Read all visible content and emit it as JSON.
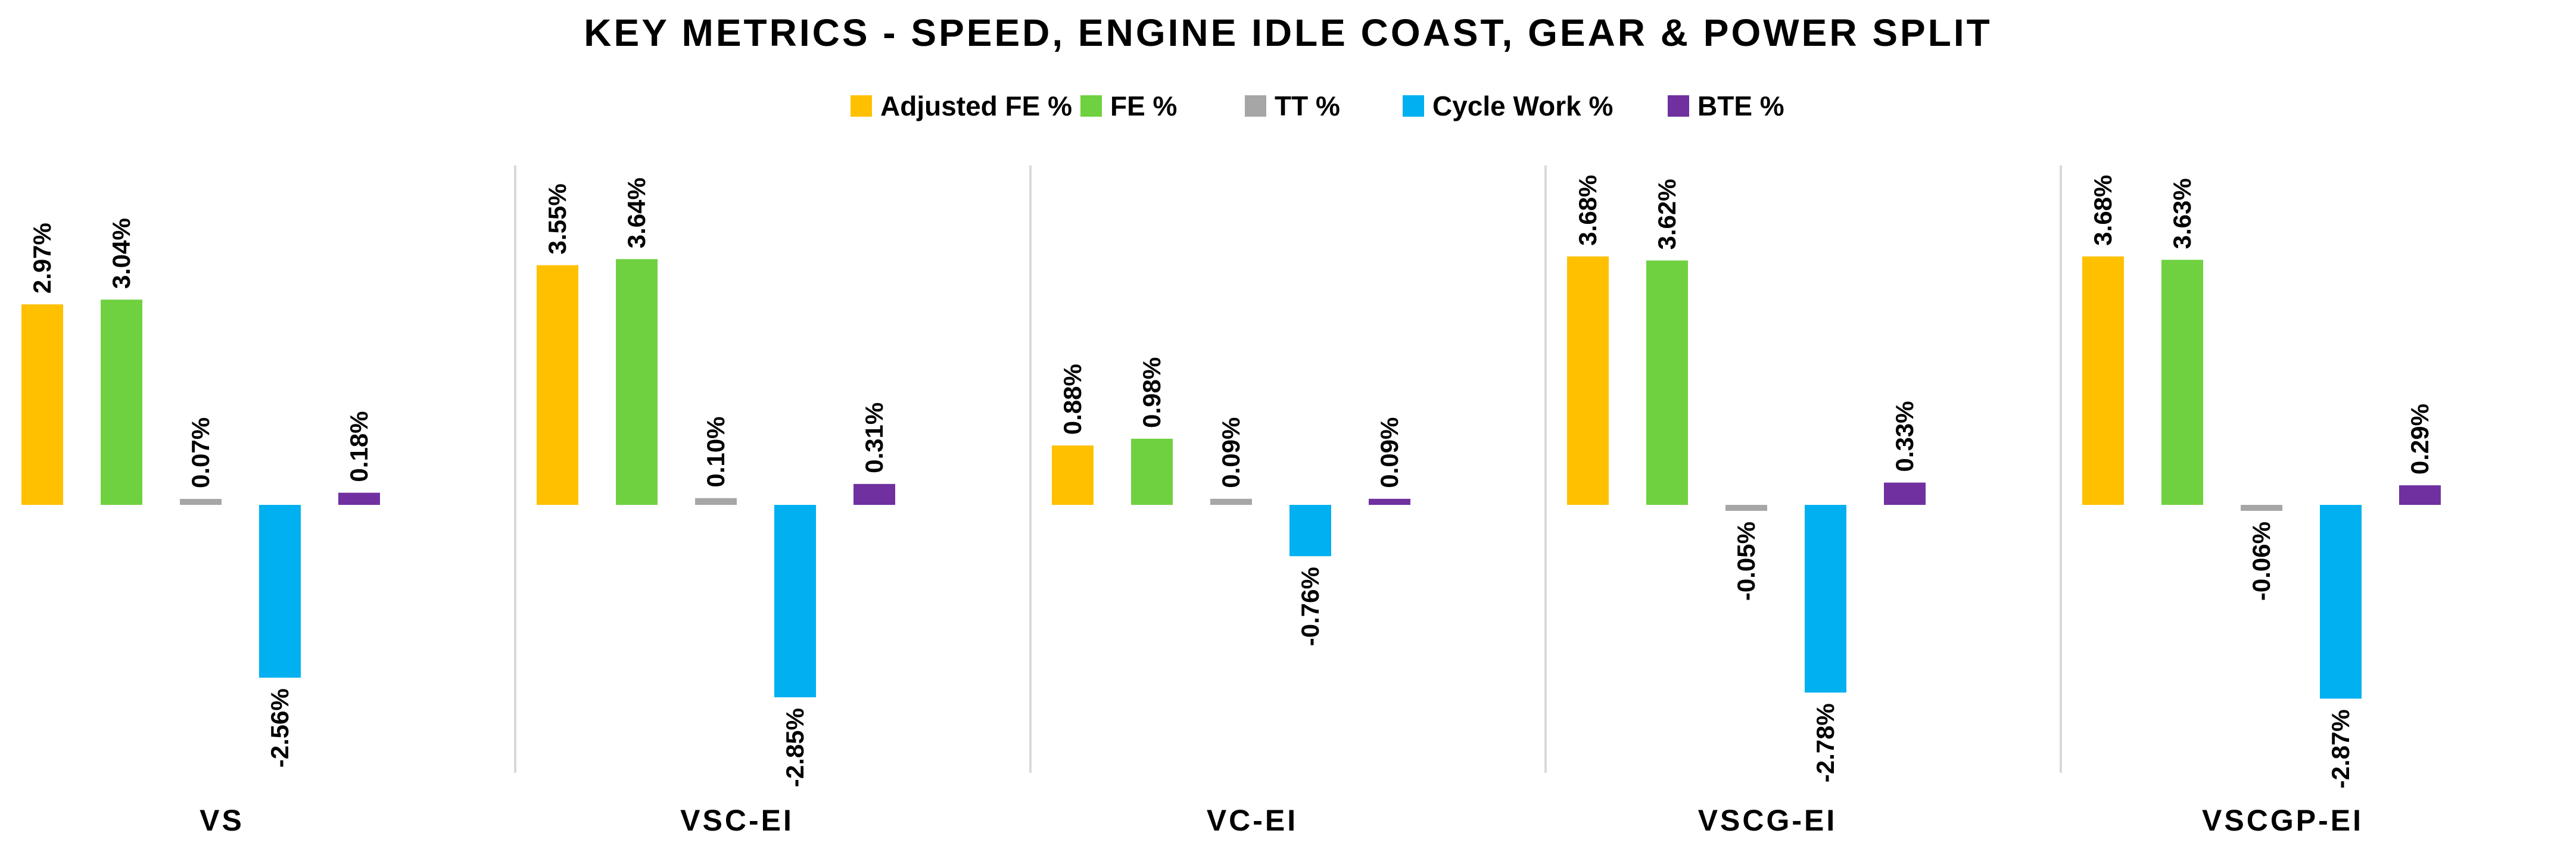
{
  "chart_data": {
    "type": "bar",
    "title": "KEY METRICS - SPEED, ENGINE IDLE COAST, GEAR & POWER SPLIT",
    "xlabel": "",
    "ylabel": "",
    "grid": false,
    "legend_position": "top-center",
    "categories": [
      "VS",
      "VSC-EI",
      "VC-EI",
      "VSCG-EI",
      "VSCGP-EI"
    ],
    "series": [
      {
        "name": "Adjusted FE %",
        "color": "#FFC000",
        "values": [
          2.97,
          3.55,
          0.88,
          3.68,
          3.68
        ],
        "labels": [
          "2.97%",
          "3.55%",
          "0.88%",
          "3.68%",
          "3.68%"
        ]
      },
      {
        "name": "FE %",
        "color": "#6FD140",
        "values": [
          3.04,
          3.64,
          0.98,
          3.62,
          3.63
        ],
        "labels": [
          "3.04%",
          "3.64%",
          "0.98%",
          "3.62%",
          "3.63%"
        ]
      },
      {
        "name": "TT %",
        "color": "#A6A6A6",
        "values": [
          0.07,
          0.1,
          0.09,
          -0.05,
          -0.06
        ],
        "labels": [
          "0.07%",
          "0.10%",
          "0.09%",
          "-0.05%",
          "-0.06%"
        ]
      },
      {
        "name": "Cycle Work %",
        "color": "#00B0F0",
        "values": [
          -2.56,
          -2.85,
          -0.76,
          -2.78,
          -2.87
        ],
        "labels": [
          "-2.56%",
          "-2.85%",
          "-0.76%",
          "-2.78%",
          "-2.87%"
        ]
      },
      {
        "name": "BTE %",
        "color": "#7030A0",
        "values": [
          0.18,
          0.31,
          0.09,
          0.33,
          0.29
        ],
        "labels": [
          "0.18%",
          "0.31%",
          "0.09%",
          "0.33%",
          "0.29%"
        ]
      }
    ]
  }
}
